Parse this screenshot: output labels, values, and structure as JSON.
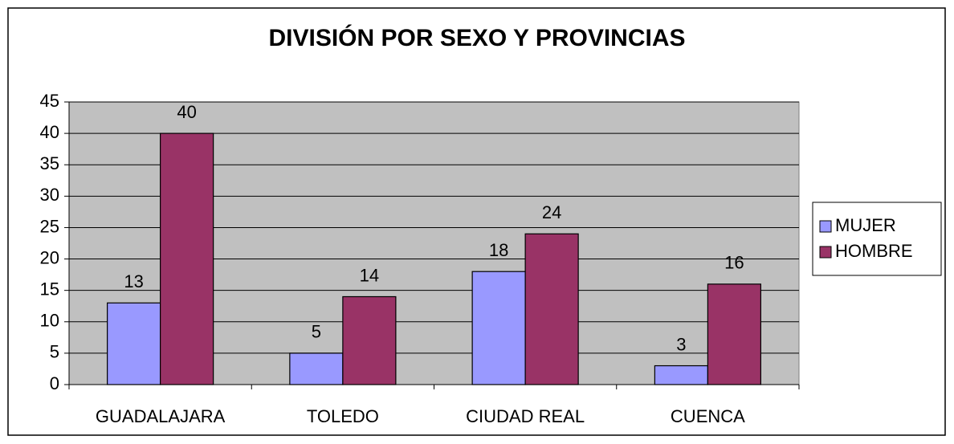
{
  "chart_data": {
    "type": "bar",
    "title": "DIVISIÓN POR SEXO Y PROVINCIAS",
    "categories": [
      "GUADALAJARA",
      "TOLEDO",
      "CIUDAD REAL",
      "CUENCA"
    ],
    "series": [
      {
        "name": "MUJER",
        "color": "#9999ff",
        "values": [
          13,
          5,
          18,
          3
        ]
      },
      {
        "name": "HOMBRE",
        "color": "#993366",
        "values": [
          40,
          14,
          24,
          16
        ]
      }
    ],
    "ylim": [
      0,
      45
    ],
    "yticks": [
      0,
      5,
      10,
      15,
      20,
      25,
      30,
      35,
      40,
      45
    ],
    "grid": true,
    "legend": "right",
    "data_labels": true
  }
}
